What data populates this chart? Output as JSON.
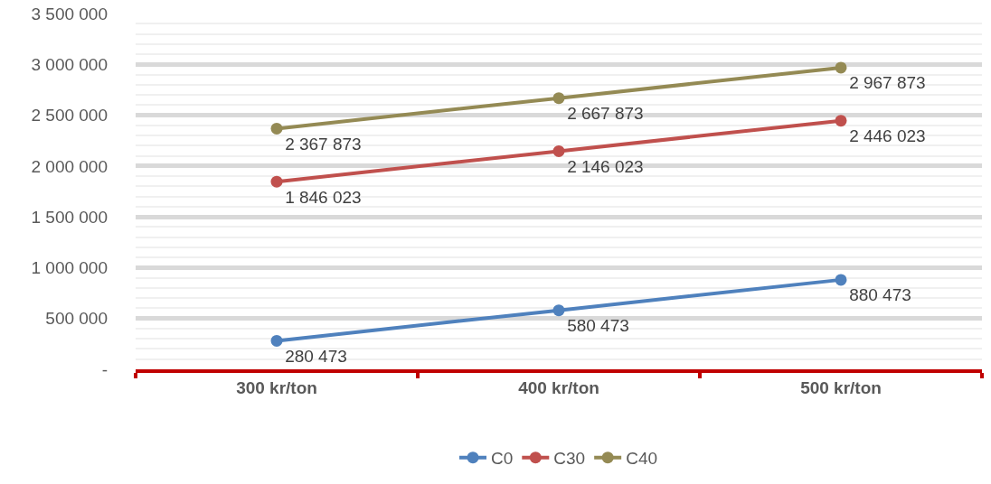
{
  "chart_data": {
    "type": "line",
    "categories": [
      "300 kr/ton",
      "400 kr/ton",
      "500 kr/ton"
    ],
    "series": [
      {
        "name": "C0",
        "color": "#4f81bd",
        "values": [
          280473,
          580473,
          880473
        ],
        "value_labels": [
          "280 473",
          "580 473",
          "880 473"
        ]
      },
      {
        "name": "C30",
        "color": "#c0504d",
        "values": [
          1846023,
          2146023,
          2446023
        ],
        "value_labels": [
          "1 846 023",
          "2 146 023",
          "2 446 023"
        ]
      },
      {
        "name": "C40",
        "color": "#948a54",
        "values": [
          2367873,
          2667873,
          2967873
        ],
        "value_labels": [
          "2 367 873",
          "2 667 873",
          "2 967 873"
        ]
      }
    ],
    "ylim": [
      0,
      3500000
    ],
    "yticks": [
      {
        "value": 0,
        "label": "-"
      },
      {
        "value": 500000,
        "label": "500 000"
      },
      {
        "value": 1000000,
        "label": "1 000 000"
      },
      {
        "value": 1500000,
        "label": "1 500 000"
      },
      {
        "value": 2000000,
        "label": "2 000 000"
      },
      {
        "value": 2500000,
        "label": "2 500 000"
      },
      {
        "value": 3000000,
        "label": "3 000 000"
      },
      {
        "value": 3500000,
        "label": "3 500 000"
      }
    ],
    "grid": "y",
    "legend": "bottom",
    "marker": "circle",
    "line_style": "solid"
  }
}
